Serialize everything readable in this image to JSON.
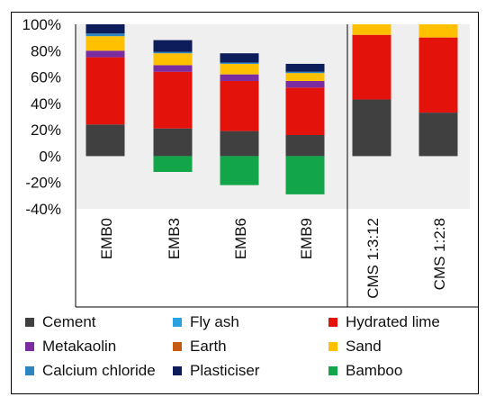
{
  "chart_data": {
    "type": "bar",
    "stacked": true,
    "categories": [
      "EMB0",
      "EMB3",
      "EMB6",
      "EMB9",
      "CMS 1:3:12",
      "CMS 1:2:8"
    ],
    "ylim": [
      -40,
      100
    ],
    "y_ticks": [
      "-40%",
      "-20%",
      "0%",
      "20%",
      "40%",
      "60%",
      "80%",
      "100%"
    ],
    "y_tick_values": [
      -40,
      -20,
      0,
      20,
      40,
      60,
      80,
      100
    ],
    "grid": false,
    "legend_position": "bottom",
    "series": [
      {
        "name": "Cement",
        "color": "#404040",
        "values": [
          24,
          21,
          19,
          16,
          43,
          33
        ]
      },
      {
        "name": "Fly ash",
        "color": "#29a3e0",
        "values": [
          0,
          0,
          0,
          0,
          0,
          0
        ]
      },
      {
        "name": "Hydrated lime",
        "color": "#e3120b",
        "values": [
          51,
          43,
          38,
          36,
          49,
          57
        ]
      },
      {
        "name": "Metakaolin",
        "color": "#7b2ca0",
        "values": [
          5,
          5,
          5,
          5,
          0,
          0
        ]
      },
      {
        "name": "Earth",
        "color": "#c55a11",
        "values": [
          0,
          0,
          0,
          0,
          0,
          0
        ]
      },
      {
        "name": "Sand",
        "color": "#ffc000",
        "values": [
          11,
          9,
          8,
          6,
          8,
          10
        ]
      },
      {
        "name": "Calcium chloride",
        "color": "#2e86c1",
        "values": [
          2,
          1,
          1,
          1,
          0,
          0
        ]
      },
      {
        "name": "Plasticiser",
        "color": "#0d1c5a",
        "values": [
          7,
          9,
          7,
          6,
          0,
          0
        ]
      },
      {
        "name": "Bamboo",
        "color": "#13a54a",
        "values": [
          0,
          -12,
          -22,
          -29,
          0,
          0
        ]
      }
    ]
  }
}
